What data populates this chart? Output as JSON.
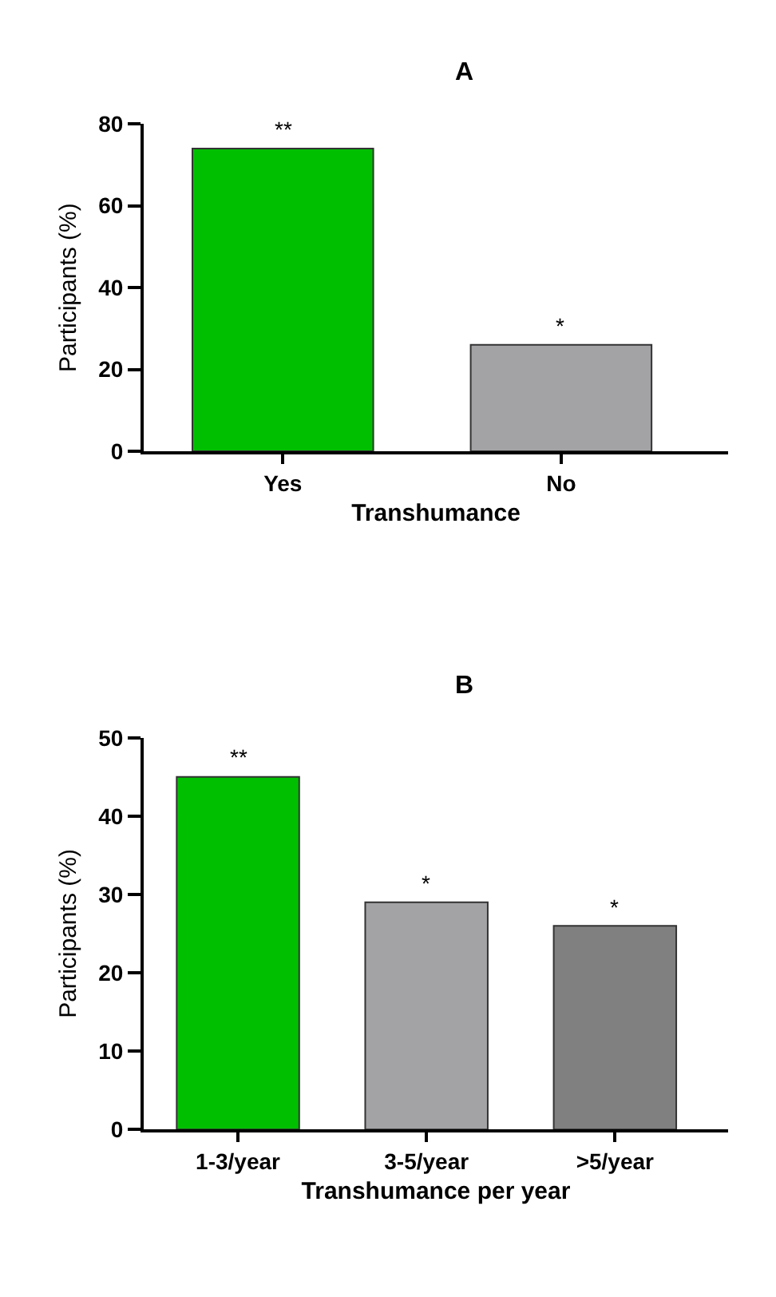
{
  "chart_data": [
    {
      "type": "bar",
      "title": "A",
      "xlabel": "Transhumance",
      "ylabel": "Participants (%)",
      "categories": [
        "Yes",
        "No"
      ],
      "values": [
        74,
        26
      ],
      "colors": [
        "#00bf00",
        "#a3a3a6"
      ],
      "ylim": [
        0,
        80
      ],
      "yticks": [
        0,
        20,
        40,
        60,
        80
      ],
      "annotations": [
        {
          "text": "**",
          "x": "Yes",
          "y": 74
        },
        {
          "text": "*",
          "x": "No",
          "y": 26
        }
      ]
    },
    {
      "type": "bar",
      "title": "B",
      "xlabel": "Transhumance per year",
      "ylabel": "Participants (%)",
      "categories": [
        "1-3/year",
        "3-5/year",
        ">5/year"
      ],
      "values": [
        45,
        29,
        26
      ],
      "colors": [
        "#00bf00",
        "#a3a3a6",
        "#808080"
      ],
      "ylim": [
        0,
        50
      ],
      "yticks": [
        0,
        10,
        20,
        30,
        40,
        50
      ],
      "annotations": [
        {
          "text": "**",
          "x": "1-3/year",
          "y": 45
        },
        {
          "text": "*",
          "x": "3-5/year",
          "y": 29
        },
        {
          "text": "*",
          "x": ">5/year",
          "y": 26
        }
      ]
    }
  ]
}
